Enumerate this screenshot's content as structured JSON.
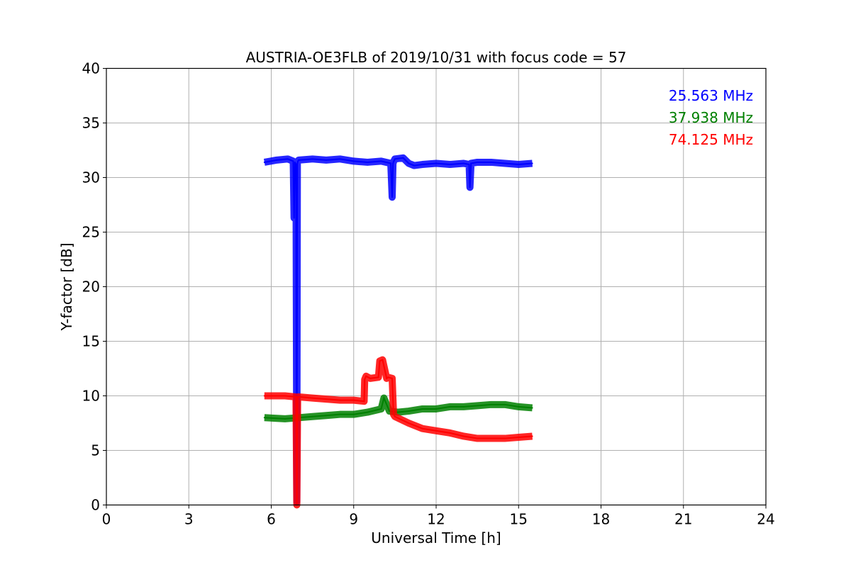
{
  "chart_data": {
    "type": "line",
    "title": "AUSTRIA-OE3FLB of 2019/10/31 with focus code = 57",
    "xlabel": "Universal Time [h]",
    "ylabel": "Y-factor [dB]",
    "xlim": [
      0,
      24
    ],
    "ylim": [
      0,
      40
    ],
    "xticks": [
      0,
      3,
      6,
      9,
      12,
      15,
      18,
      21,
      24
    ],
    "yticks": [
      0,
      5,
      10,
      15,
      20,
      25,
      30,
      35,
      40
    ],
    "xtick_labels": [
      "0",
      "3",
      "6",
      "9",
      "12",
      "15",
      "18",
      "21",
      "24"
    ],
    "ytick_labels": [
      "0",
      "5",
      "10",
      "15",
      "20",
      "25",
      "30",
      "35",
      "40"
    ],
    "grid": true,
    "legend_placement": "top-right",
    "series": [
      {
        "name": "25.563 MHz",
        "color": "#0000ff",
        "x": [
          5.75,
          6.2,
          6.6,
          6.8,
          6.83,
          6.86,
          6.9,
          6.93,
          6.95,
          6.97,
          7.0,
          7.5,
          8.0,
          8.5,
          9.0,
          9.5,
          10.0,
          10.35,
          10.4,
          10.43,
          10.46,
          10.5,
          10.8,
          11.0,
          11.2,
          11.5,
          12.0,
          12.5,
          13.0,
          13.2,
          13.23,
          13.27,
          13.5,
          14.0,
          14.5,
          15.0,
          15.5
        ],
        "y": [
          31.4,
          31.6,
          31.7,
          31.5,
          26.3,
          31.4,
          31.2,
          0.3,
          31.3,
          31.5,
          31.6,
          31.7,
          31.6,
          31.7,
          31.5,
          31.4,
          31.5,
          31.3,
          28.2,
          31.3,
          31.5,
          31.7,
          31.8,
          31.3,
          31.1,
          31.2,
          31.3,
          31.2,
          31.3,
          31.2,
          29.1,
          31.3,
          31.4,
          31.4,
          31.3,
          31.2,
          31.3
        ]
      },
      {
        "name": "37.938 MHz",
        "color": "#008000",
        "x": [
          5.75,
          6.5,
          7.0,
          7.5,
          8.0,
          8.5,
          9.0,
          9.5,
          10.0,
          10.1,
          10.3,
          10.6,
          11.0,
          11.5,
          12.0,
          12.5,
          13.0,
          13.5,
          14.0,
          14.5,
          15.0,
          15.5
        ],
        "y": [
          8.0,
          7.9,
          8.0,
          8.1,
          8.2,
          8.3,
          8.3,
          8.5,
          8.8,
          9.8,
          8.6,
          8.5,
          8.6,
          8.8,
          8.8,
          9.0,
          9.0,
          9.1,
          9.2,
          9.2,
          9.0,
          8.9
        ]
      },
      {
        "name": "74.125 MHz",
        "color": "#ff0000",
        "x": [
          5.75,
          6.5,
          6.9,
          6.93,
          6.96,
          7.0,
          7.5,
          8.0,
          8.5,
          9.0,
          9.38,
          9.4,
          9.45,
          9.6,
          9.9,
          9.95,
          10.05,
          10.2,
          10.25,
          10.4,
          10.45,
          10.5,
          11.0,
          11.5,
          12.0,
          12.5,
          13.0,
          13.5,
          14.0,
          14.5,
          15.0,
          15.5
        ],
        "y": [
          10.0,
          10.0,
          9.9,
          0.0,
          9.9,
          9.9,
          9.8,
          9.7,
          9.6,
          9.6,
          9.5,
          11.5,
          11.8,
          11.6,
          11.7,
          13.2,
          13.3,
          11.6,
          11.7,
          11.6,
          8.3,
          8.1,
          7.5,
          7.0,
          6.8,
          6.6,
          6.3,
          6.1,
          6.1,
          6.1,
          6.2,
          6.3
        ]
      }
    ]
  }
}
